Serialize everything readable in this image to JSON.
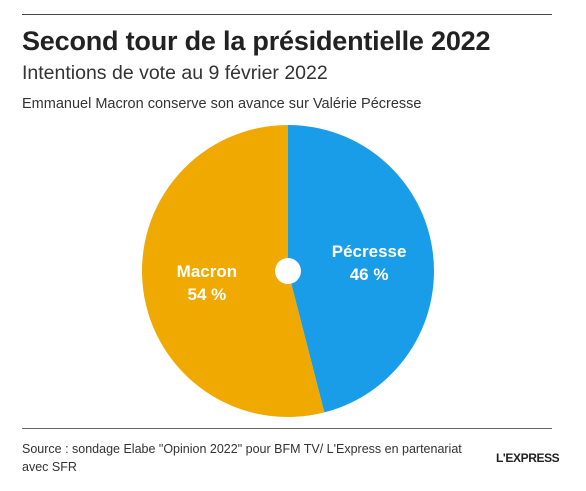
{
  "header": {
    "title": "Second tour de la présidentielle 2022",
    "subtitle": "Intentions de vote au 9 février 2022",
    "note": "Emmanuel Macron conserve son avance sur Valérie Pécresse"
  },
  "chart_data": {
    "type": "pie",
    "title": "Second tour de la présidentielle 2022",
    "subtitle": "Intentions de vote au 9 février 2022",
    "slices": [
      {
        "label": "Pécresse",
        "value": 46,
        "value_label": "46 %",
        "color": "#1a9de8"
      },
      {
        "label": "Macron",
        "value": 54,
        "value_label": "54 %",
        "color": "#f0a900"
      }
    ],
    "donut_hole": true,
    "legend": "none"
  },
  "footer": {
    "source": "Source : sondage Elabe \"Opinion 2022\" pour BFM TV/ L'Express en partenariat avec SFR",
    "logo": "L'EXPRESS"
  }
}
